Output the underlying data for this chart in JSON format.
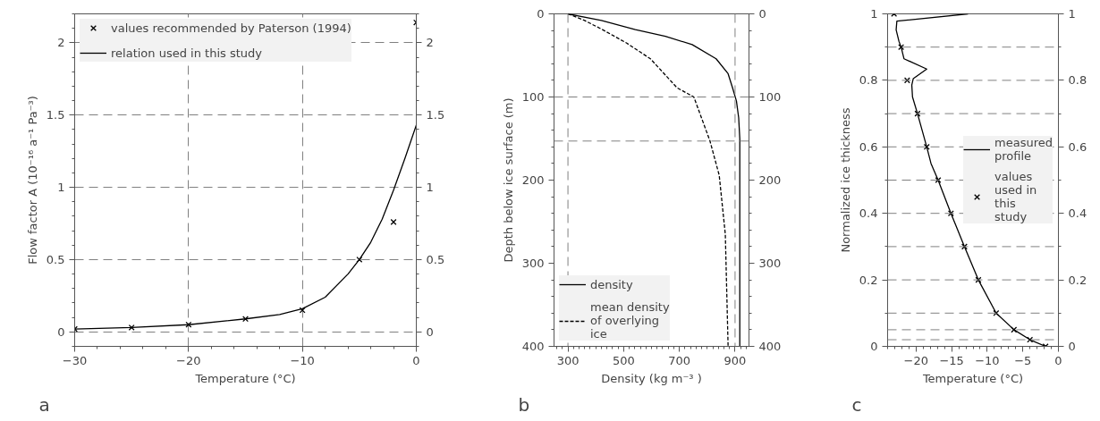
{
  "chart_data": [
    {
      "type": "line",
      "xlabel": "Temperature (°C)",
      "ylabel": "Flow factor A (10⁻¹⁶ a⁻¹ Pa⁻³)",
      "xlim": [
        -30,
        0
      ],
      "xticks": [
        -30,
        -20,
        -10,
        0
      ],
      "ylim": [
        -0.1,
        2.2
      ],
      "yticks": [
        0,
        0.5,
        1,
        1.5,
        2
      ],
      "y2lim": [
        -0.1,
        2.2
      ],
      "y2ticks": [
        0,
        0.5,
        1,
        1.5,
        2
      ],
      "grid": true,
      "legend": "top left",
      "annotations": [
        "a"
      ],
      "series": [
        {
          "name": "values recommended by Paterson (1994)",
          "type": "scatter",
          "marker": "cross",
          "color": "#000000",
          "x": [
            -30,
            -25,
            -20,
            -15,
            -10,
            -5,
            -2,
            0
          ],
          "values": [
            0.02,
            0.03,
            0.05,
            0.09,
            0.15,
            0.5,
            0.76,
            2.14
          ]
        },
        {
          "name": "relation used in this study",
          "line_style": "solid",
          "color": "#000000",
          "x": [
            -30,
            -25,
            -20,
            -15,
            -12,
            -10,
            -8,
            -6,
            -5,
            -4,
            -3,
            -2,
            -1,
            0
          ],
          "values": [
            0.02,
            0.03,
            0.05,
            0.09,
            0.12,
            0.16,
            0.24,
            0.4,
            0.5,
            0.62,
            0.78,
            0.98,
            1.2,
            1.43
          ]
        }
      ]
    },
    {
      "type": "line",
      "xlabel": "Density (kg m⁻³ )",
      "ylabel": "Depth below ice surface (m)",
      "xlim": [
        250,
        950
      ],
      "xticks": [
        300,
        500,
        700,
        900
      ],
      "ylim": [
        400,
        0
      ],
      "yticks": [
        0,
        100,
        200,
        300,
        400
      ],
      "y2lim": [
        400,
        0
      ],
      "y2ticks": [
        0,
        100,
        200,
        300,
        400
      ],
      "grid": false,
      "legend": "bottom left",
      "annotations": [
        "b"
      ],
      "ref_lines": [
        {
          "axis": "x",
          "value": 300,
          "color": "#808080",
          "line_style": "dashed"
        },
        {
          "axis": "x",
          "value": 900,
          "color": "#808080",
          "line_style": "dashed"
        },
        {
          "axis": "y",
          "value": 100,
          "color": "#808080",
          "line_style": "dashed"
        },
        {
          "axis": "y",
          "value": 153,
          "color": "#808080",
          "line_style": "dashed"
        }
      ],
      "series": [
        {
          "name": "density",
          "line_style": "solid",
          "color": "#000000",
          "x": [
            300,
            420,
            542,
            650,
            746,
            832,
            875,
            891,
            905,
            913,
            917,
            917
          ],
          "values": [
            0,
            8,
            19,
            27,
            37,
            54,
            72,
            89,
            105,
            125,
            150,
            400
          ]
        },
        {
          "name": "mean density of overlying ice",
          "line_style": "dashed",
          "color": "#000000",
          "x": [
            300,
            360,
            424,
            510,
            596,
            692,
            752,
            810,
            843,
            865,
            875
          ],
          "values": [
            0,
            8,
            19,
            35,
            54,
            89,
            100,
            153,
            194,
            265,
            400
          ]
        }
      ]
    },
    {
      "type": "line",
      "xlabel": "Temperature (°C)",
      "ylabel": "Normalized ice thickness",
      "xlim": [
        -24,
        0
      ],
      "xticks": [
        -20,
        -15,
        -10,
        -5,
        0
      ],
      "ylim": [
        0,
        1
      ],
      "yticks": [
        0,
        0.2,
        0.4,
        0.6,
        0.8,
        1
      ],
      "y2lim": [
        0,
        1
      ],
      "y2ticks": [
        0,
        0.2,
        0.4,
        0.6,
        0.8,
        1
      ],
      "grid": false,
      "legend": "right",
      "annotations": [
        "c"
      ],
      "ref_lines": [
        {
          "axis": "y",
          "value": 0.02,
          "color": "#808080",
          "line_style": "dashed"
        },
        {
          "axis": "y",
          "value": 0.05,
          "color": "#808080",
          "line_style": "dashed"
        },
        {
          "axis": "y",
          "value": 0.1,
          "color": "#808080",
          "line_style": "dashed"
        },
        {
          "axis": "y",
          "value": 0.2,
          "color": "#808080",
          "line_style": "dashed"
        },
        {
          "axis": "y",
          "value": 0.3,
          "color": "#808080",
          "line_style": "dashed"
        },
        {
          "axis": "y",
          "value": 0.4,
          "color": "#808080",
          "line_style": "dashed"
        },
        {
          "axis": "y",
          "value": 0.5,
          "color": "#808080",
          "line_style": "dashed"
        },
        {
          "axis": "y",
          "value": 0.6,
          "color": "#808080",
          "line_style": "dashed"
        },
        {
          "axis": "y",
          "value": 0.7,
          "color": "#808080",
          "line_style": "dashed"
        },
        {
          "axis": "y",
          "value": 0.8,
          "color": "#808080",
          "line_style": "dashed"
        },
        {
          "axis": "y",
          "value": 0.9,
          "color": "#808080",
          "line_style": "dashed"
        }
      ],
      "series": [
        {
          "name": "measured profile",
          "line_style": "solid",
          "color": "#000000",
          "x": [
            -12.7,
            -22.7,
            -22.8,
            -22.4,
            -22.1,
            -21.7,
            -18.5,
            -20.4,
            -20.6,
            -20.5,
            -19.8,
            -18.5,
            -17.9,
            -16.9,
            -15.1,
            -13.2,
            -11.25,
            -8.75,
            -6.25,
            -4.0,
            -1.8
          ],
          "values": [
            1.0,
            0.978,
            0.952,
            0.917,
            0.9,
            0.865,
            0.834,
            0.805,
            0.786,
            0.75,
            0.7,
            0.6,
            0.55,
            0.5,
            0.4,
            0.3,
            0.2,
            0.1,
            0.05,
            0.02,
            0
          ]
        },
        {
          "name": "values used in this study",
          "type": "scatter",
          "marker": "cross",
          "color": "#000000",
          "x": [
            -23.1,
            -22.1,
            -21.25,
            -19.8,
            -18.5,
            -16.9,
            -15.1,
            -13.2,
            -11.25,
            -8.75,
            -6.25,
            -4.0,
            -1.8
          ],
          "values": [
            1,
            0.9,
            0.8,
            0.7,
            0.6,
            0.5,
            0.4,
            0.3,
            0.2,
            0.1,
            0.05,
            0.02,
            0
          ]
        }
      ]
    }
  ]
}
